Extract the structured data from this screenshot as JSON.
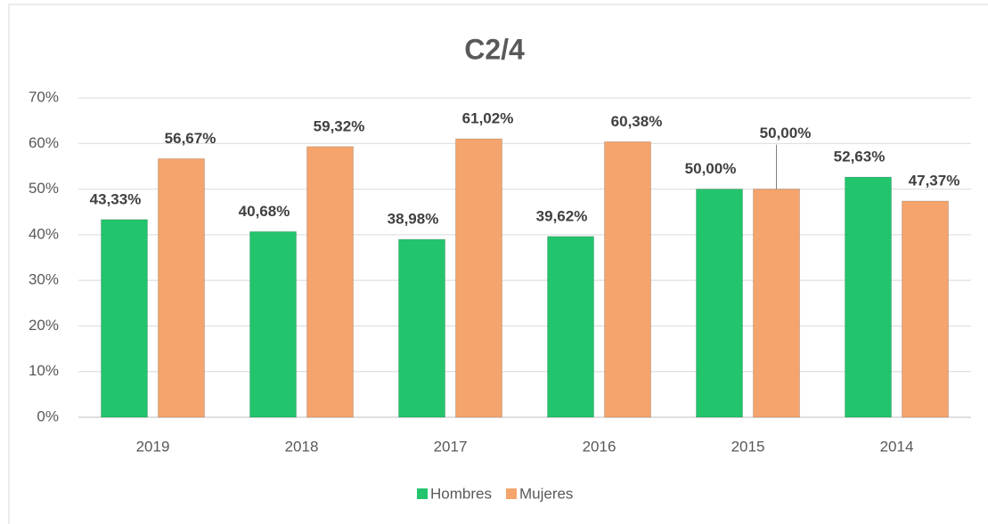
{
  "chart_data": {
    "type": "bar",
    "title": "C2/4",
    "categories": [
      "2019",
      "2018",
      "2017",
      "2016",
      "2015",
      "2014"
    ],
    "series": [
      {
        "name": "Hombres",
        "color": "#22c46c",
        "values": [
          43.33,
          40.68,
          38.98,
          39.62,
          50.0,
          52.63
        ],
        "value_labels": [
          "43,33%",
          "40,68%",
          "38,98%",
          "39,62%",
          "50,00%",
          "52,63%"
        ]
      },
      {
        "name": "Mujeres",
        "color": "#f4a46c",
        "values": [
          56.67,
          59.32,
          61.02,
          60.38,
          50.0,
          47.37
        ],
        "value_labels": [
          "56,67%",
          "59,32%",
          "61,02%",
          "60,38%",
          "50,00%",
          "47,37%"
        ]
      }
    ],
    "ylim": [
      0,
      70
    ],
    "yticks": [
      {
        "value": 0,
        "label": "0%"
      },
      {
        "value": 10,
        "label": "10%"
      },
      {
        "value": 20,
        "label": "20%"
      },
      {
        "value": 30,
        "label": "30%"
      },
      {
        "value": 40,
        "label": "40%"
      },
      {
        "value": 50,
        "label": "50%"
      },
      {
        "value": 60,
        "label": "60%"
      },
      {
        "value": 70,
        "label": "70%"
      }
    ],
    "grid": true,
    "legend": "bottom"
  }
}
